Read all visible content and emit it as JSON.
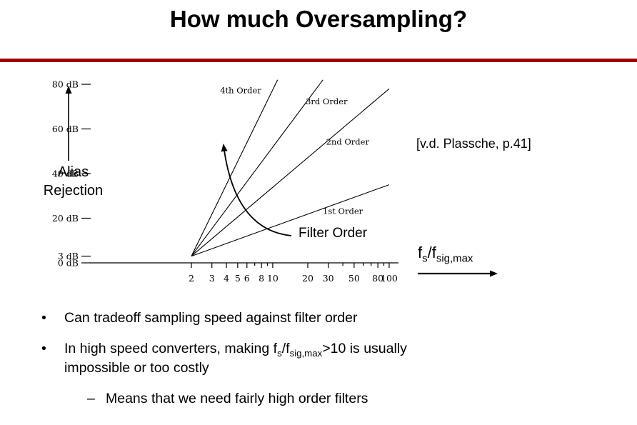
{
  "slide": {
    "title": "How much Oversampling?",
    "accent_color": "#a00000",
    "citation": "[v.d. Plassche, p.41]",
    "filter_order_label": "Filter Order",
    "alias_line1": "Alias",
    "alias_line2": "Rejection",
    "x_axis_label": {
      "base1": "f",
      "sub1": "s",
      "base2": "/f",
      "sub2": "sig,max"
    },
    "bullets": {
      "bullet_char": "•",
      "dash_char": "–",
      "b1": "Can tradeoff sampling speed against filter order",
      "b2_part1": "In high speed converters, making f",
      "b2_sub1": "s",
      "b2_part2": "/f",
      "b2_sub2": "sig,max",
      "b2_part3": ">10 is usually",
      "b2_line2": "impossible or too costly",
      "b2_sub": "Means that we need fairly high order filters"
    }
  },
  "chart_data": {
    "type": "line",
    "x_scale": "log",
    "xlabel": "fs/fsig,max",
    "ylabel": "Alias Rejection (dB)",
    "x_ticks": [
      2,
      3,
      4,
      5,
      6,
      8,
      10,
      20,
      30,
      50,
      80,
      100
    ],
    "x_minor_ticks": [
      7,
      9,
      40,
      60,
      70,
      90
    ],
    "x_range": [
      1.6,
      110
    ],
    "y_range": [
      0,
      84
    ],
    "y_ticks": [
      {
        "value": 80,
        "label": "80 dB"
      },
      {
        "value": 60,
        "label": "60 dB"
      },
      {
        "value": 40,
        "label": "40 dB"
      },
      {
        "value": 20,
        "label": "20 dB"
      },
      {
        "value": 3,
        "label": "3 dB"
      },
      {
        "value": 0,
        "label": "0 dB"
      }
    ],
    "series": [
      {
        "name": "4th Order",
        "points": [
          [
            2,
            3
          ],
          [
            11,
            82
          ]
        ],
        "label_pos": [
          5.3,
          76
        ]
      },
      {
        "name": "3rd Order",
        "points": [
          [
            2,
            3
          ],
          [
            27,
            82
          ]
        ],
        "label_pos": [
          29,
          71
        ]
      },
      {
        "name": "2nd Order",
        "points": [
          [
            2,
            3
          ],
          [
            100,
            78
          ]
        ],
        "label_pos": [
          44,
          53
        ]
      },
      {
        "name": "1st Order",
        "points": [
          [
            2,
            3
          ],
          [
            100,
            35
          ]
        ],
        "label_pos": [
          40,
          22
        ]
      }
    ],
    "annotations": [
      "Filter Order"
    ],
    "source": "[v.d. Plassche, p.41]"
  }
}
